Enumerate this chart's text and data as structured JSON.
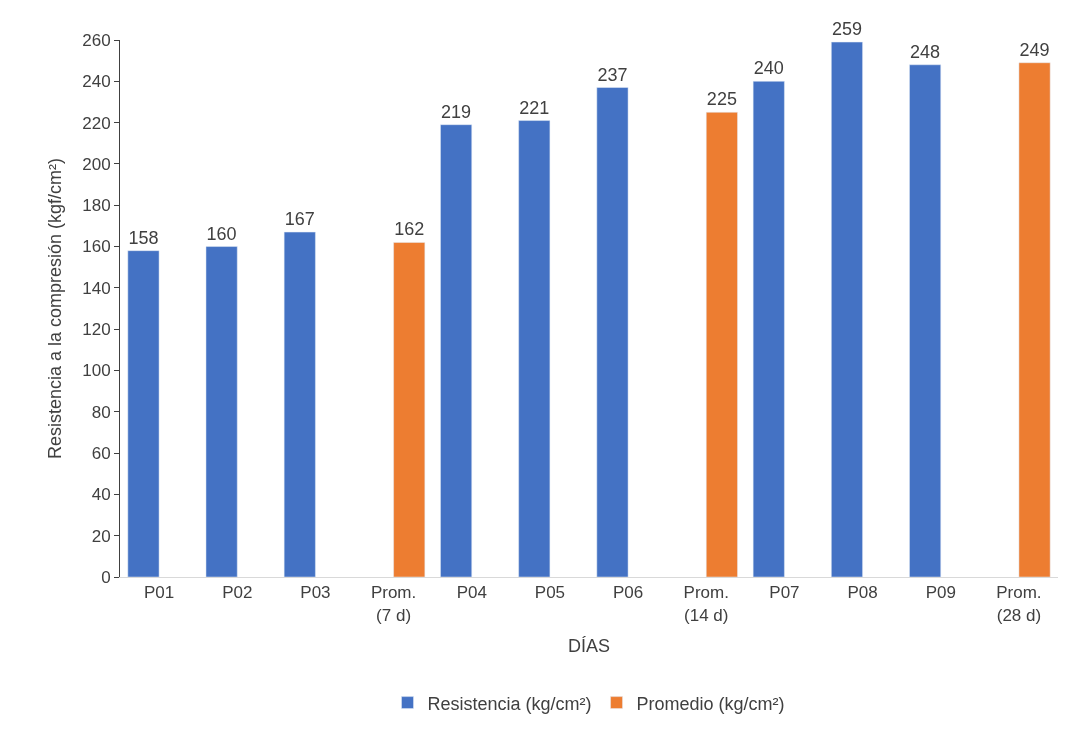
{
  "chart_data": {
    "type": "bar",
    "xlabel": "DÍAS",
    "ylabel": "Resistencia a la compresión (kgf/cm²)",
    "categories": [
      "P01",
      "P02",
      "P03",
      "Prom.\n(7 d)",
      "P04",
      "P05",
      "P06",
      "Prom.\n(14 d)",
      "P07",
      "P08",
      "P09",
      "Prom.\n(28 d)"
    ],
    "series": [
      {
        "name": "Resistencia (kg/cm²)",
        "color": "#4472c4",
        "values": [
          158,
          160,
          167,
          null,
          219,
          221,
          237,
          null,
          240,
          259,
          248,
          null
        ]
      },
      {
        "name": "Promedio (kg/cm²)",
        "color": "#ed7d31",
        "values": [
          null,
          null,
          null,
          162,
          null,
          null,
          null,
          225,
          null,
          null,
          null,
          249
        ]
      }
    ],
    "ylim": [
      0,
      260
    ],
    "yticks": [
      0,
      20,
      40,
      60,
      80,
      100,
      120,
      140,
      160,
      180,
      200,
      220,
      240,
      260
    ],
    "data_labels": true,
    "legend": "bottom"
  }
}
